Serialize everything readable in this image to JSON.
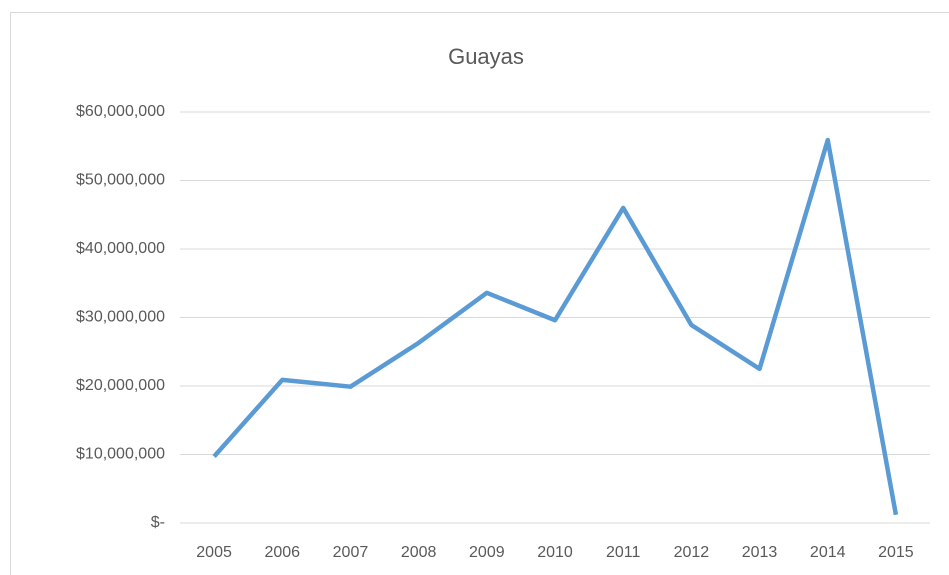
{
  "chart_data": {
    "type": "line",
    "title": "Guayas",
    "categories": [
      "2005",
      "2006",
      "2007",
      "2008",
      "2009",
      "2010",
      "2011",
      "2012",
      "2013",
      "2014",
      "2015"
    ],
    "series": [
      {
        "name": "Guayas",
        "color": "#5b9bd5",
        "values": [
          9700000,
          20900000,
          19900000,
          26300000,
          33600000,
          29600000,
          46000000,
          28900000,
          22500000,
          55900000,
          1200000
        ]
      }
    ],
    "ylim": [
      0,
      60000000
    ],
    "yticks": [
      {
        "value": 0,
        "label": "$-"
      },
      {
        "value": 10000000,
        "label": "$10,000,000"
      },
      {
        "value": 20000000,
        "label": "$20,000,000"
      },
      {
        "value": 30000000,
        "label": "$30,000,000"
      },
      {
        "value": 40000000,
        "label": "$40,000,000"
      },
      {
        "value": 50000000,
        "label": "$50,000,000"
      },
      {
        "value": 60000000,
        "label": "$60,000,000"
      }
    ],
    "grid": true
  }
}
